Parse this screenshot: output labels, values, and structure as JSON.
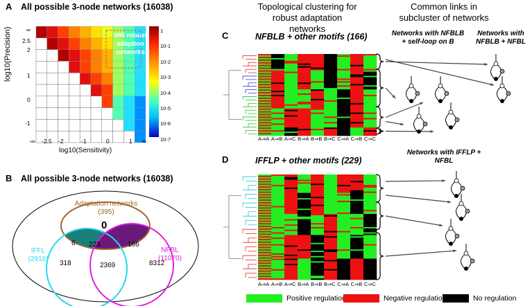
{
  "panels": {
    "a_letter": "A",
    "a_title": "All possible 3-node networks (16038)",
    "b_letter": "B",
    "b_title": "All possible 3-node networks (16038)",
    "c_letter": "C",
    "d_letter": "D"
  },
  "headers": {
    "topo": "Topological clustering for robust adaptation networks",
    "common": "Common links in subcluster of networks"
  },
  "heatmap": {
    "ylabel": "log10(Precision)",
    "xlabel": "log10(Sensitivity)",
    "y_ticks": [
      "∞",
      "2.5",
      "2",
      "1.5",
      "1",
      "0.5",
      "0",
      "-0.5",
      "-1"
    ],
    "y_tick_labels_shown": [
      "∞",
      "2.5",
      "2",
      "1",
      "0",
      "-1"
    ],
    "x_ticks_shown": [
      "-∞",
      "-2.5",
      "-2",
      "-1",
      "0",
      "1",
      "∞"
    ],
    "annotation": "395 robust adaption networks",
    "colorbar_ticks": [
      "1",
      "10-1",
      "10-2",
      "10-3",
      "10-4",
      "10-5",
      "10-6",
      "10-7"
    ],
    "colors": {
      "high": "#b30000",
      "mid": "#ffff00",
      "low": "#0000ff"
    }
  },
  "venn": {
    "adaptation_label": "Adaptation networks (395)",
    "iffl_label": "IFFL (2916)",
    "nfbl_label": "NFBL (11070)",
    "center_zero": "0",
    "n_6": "6",
    "n_223": "223",
    "n_166": "166",
    "n_318": "318",
    "n_2369": "2369",
    "n_8312": "8312",
    "colors": {
      "adaptation": "#a0652c",
      "iffl": "#29d6f0",
      "nfbl": "#e020e0"
    }
  },
  "panel_c": {
    "title": "NFBLB + other motifs (166)",
    "net_label_1": "Networks with NFBLB + self-loop on B",
    "net_label_2": "Networks with NFBLB + NFBL",
    "columns": [
      "A⇒A",
      "A⇒B",
      "A⇒C",
      "B⇒A",
      "B⇒B",
      "B⇒C",
      "C⇒A",
      "C⇒B",
      "C⇒C"
    ]
  },
  "panel_d": {
    "title": "IFFLP + other motifs (229)",
    "net_label": "Networks with IFFLP + NFBL",
    "columns": [
      "A⇒A",
      "A⇒B",
      "A⇒C",
      "B⇒A",
      "B⇒B",
      "B⇒C",
      "C⇒A",
      "C⇒B",
      "C⇒C"
    ]
  },
  "legend": {
    "positive": "Positive regulations",
    "negative": "Negative regulations",
    "none": "No regulation",
    "colors": {
      "positive": "#22ee22",
      "negative": "#ee1111",
      "none": "#000000"
    }
  }
}
